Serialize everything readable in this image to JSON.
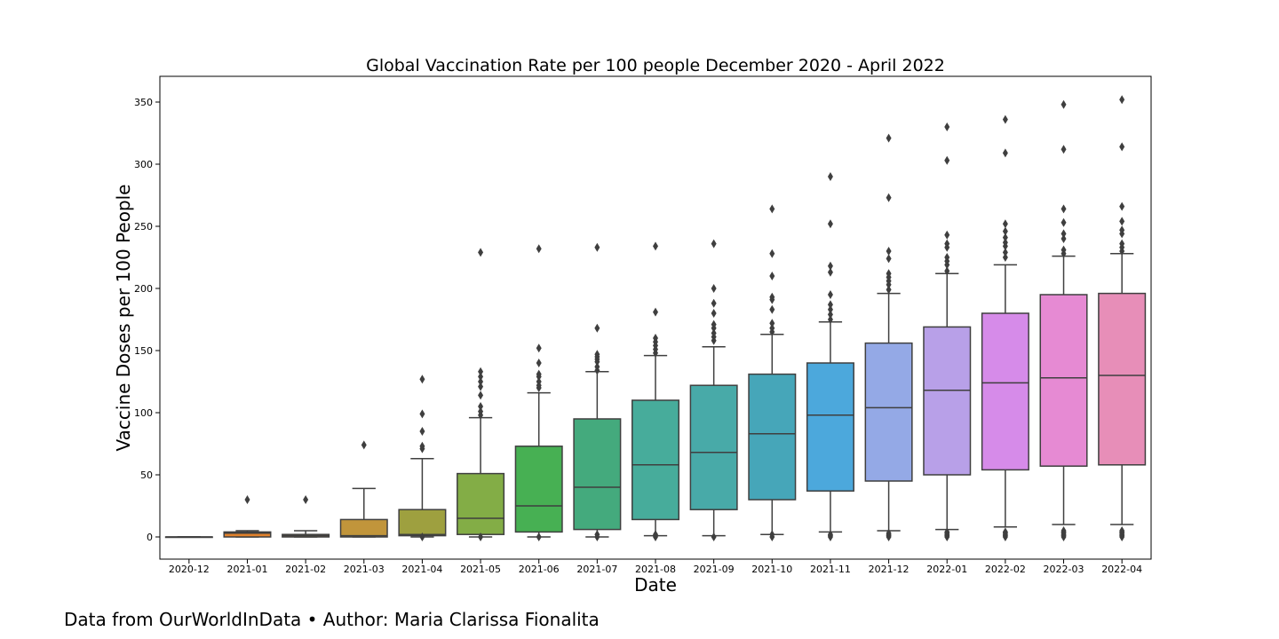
{
  "caption": "Data from OurWorldInData • Author: Maria Clarissa Fionalita",
  "chart_data": {
    "type": "box",
    "title": "Global Vaccination Rate per 100 people December 2020 - April 2022",
    "xlabel": "Date",
    "ylabel": "Vaccine Doses per 100 People",
    "ylim": [
      -18,
      370
    ],
    "yticks": [
      0,
      50,
      100,
      150,
      200,
      250,
      300,
      350
    ],
    "grid": false,
    "categories": [
      "2020-12",
      "2021-01",
      "2021-02",
      "2021-03",
      "2021-04",
      "2021-05",
      "2021-06",
      "2021-07",
      "2021-08",
      "2021-09",
      "2021-10",
      "2021-11",
      "2021-12",
      "2022-01",
      "2022-02",
      "2022-03",
      "2022-04"
    ],
    "boxes": [
      {
        "whislo": 0,
        "q1": 0,
        "med": 0,
        "q3": 0,
        "whishi": 0,
        "fliers": [],
        "color": "#3274a1"
      },
      {
        "whislo": 0,
        "q1": 0,
        "med": 3,
        "q3": 4,
        "whishi": 5,
        "fliers": [
          30
        ],
        "color": "#e1812c"
      },
      {
        "whislo": 0,
        "q1": 0,
        "med": 1,
        "q3": 2,
        "whishi": 5,
        "fliers": [
          30
        ],
        "color": "#c49b45"
      },
      {
        "whislo": 0,
        "q1": 0,
        "med": 1,
        "q3": 14,
        "whishi": 39,
        "fliers": [
          74
        ],
        "color": "#c1953b"
      },
      {
        "whislo": 0,
        "q1": 1,
        "med": 2,
        "q3": 22,
        "whishi": 63,
        "fliers": [
          0,
          71,
          73,
          85,
          99,
          127
        ],
        "color": "#9ea03f"
      },
      {
        "whislo": 0,
        "q1": 2,
        "med": 15,
        "q3": 51,
        "whishi": 96,
        "fliers": [
          0,
          98,
          101,
          105,
          114,
          121,
          125,
          129,
          133,
          229
        ],
        "color": "#83ad46"
      },
      {
        "whislo": 0,
        "q1": 4,
        "med": 25,
        "q3": 73,
        "whishi": 116,
        "fliers": [
          0,
          120,
          122,
          125,
          129,
          131,
          140,
          152,
          232
        ],
        "color": "#47b053"
      },
      {
        "whislo": 0,
        "q1": 6,
        "med": 40,
        "q3": 95,
        "whishi": 133,
        "fliers": [
          0,
          2,
          134,
          137,
          141,
          143,
          145,
          147,
          168,
          233
        ],
        "color": "#44aa7d"
      },
      {
        "whislo": 1,
        "q1": 14,
        "med": 58,
        "q3": 110,
        "whishi": 146,
        "fliers": [
          0,
          2,
          148,
          151,
          154,
          157,
          160,
          181,
          234
        ],
        "color": "#47ac9b"
      },
      {
        "whislo": 1,
        "q1": 22,
        "med": 68,
        "q3": 122,
        "whishi": 153,
        "fliers": [
          0,
          158,
          161,
          164,
          168,
          171,
          180,
          188,
          200,
          236
        ],
        "color": "#48aaa8"
      },
      {
        "whislo": 2,
        "q1": 30,
        "med": 83,
        "q3": 131,
        "whishi": 163,
        "fliers": [
          0,
          2,
          165,
          168,
          172,
          183,
          191,
          193,
          210,
          228,
          264
        ],
        "color": "#46a6b9"
      },
      {
        "whislo": 4,
        "q1": 37,
        "med": 98,
        "q3": 140,
        "whishi": 173,
        "fliers": [
          0,
          1,
          2,
          175,
          179,
          183,
          187,
          195,
          213,
          218,
          252,
          290
        ],
        "color": "#4ca8dc"
      },
      {
        "whislo": 5,
        "q1": 45,
        "med": 104,
        "q3": 156,
        "whishi": 196,
        "fliers": [
          0,
          1,
          2,
          3,
          199,
          203,
          206,
          209,
          212,
          224,
          230,
          273,
          321
        ],
        "color": "#94a9e6"
      },
      {
        "whislo": 6,
        "q1": 50,
        "med": 118,
        "q3": 169,
        "whishi": 212,
        "fliers": [
          0,
          1,
          2,
          3,
          4,
          214,
          219,
          222,
          225,
          233,
          236,
          243,
          303,
          330
        ],
        "color": "#b8a0e8"
      },
      {
        "whislo": 8,
        "q1": 54,
        "med": 124,
        "q3": 180,
        "whishi": 219,
        "fliers": [
          0,
          1,
          2,
          3,
          4,
          225,
          229,
          234,
          237,
          241,
          246,
          252,
          309,
          336
        ],
        "color": "#d68be9"
      },
      {
        "whislo": 10,
        "q1": 57,
        "med": 128,
        "q3": 195,
        "whishi": 226,
        "fliers": [
          0,
          1,
          2,
          3,
          4,
          5,
          228,
          231,
          240,
          244,
          253,
          264,
          312,
          348
        ],
        "color": "#e68ad3"
      },
      {
        "whislo": 10,
        "q1": 58,
        "med": 130,
        "q3": 196,
        "whishi": 228,
        "fliers": [
          0,
          1,
          2,
          3,
          4,
          5,
          230,
          233,
          236,
          244,
          247,
          254,
          266,
          314,
          352
        ],
        "color": "#e78eb8"
      }
    ]
  }
}
